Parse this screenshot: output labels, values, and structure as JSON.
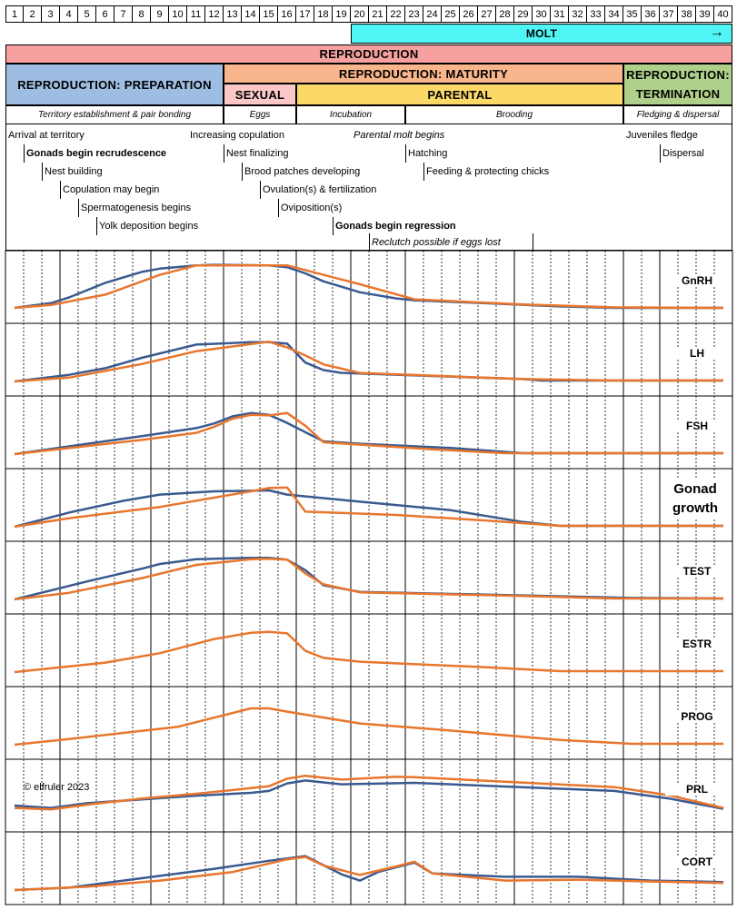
{
  "days": [
    "1",
    "2",
    "3",
    "4",
    "5",
    "6",
    "7",
    "8",
    "9",
    "10",
    "11",
    "12",
    "13",
    "14",
    "15",
    "16",
    "17",
    "18",
    "19",
    "20",
    "21",
    "22",
    "23",
    "24",
    "25",
    "26",
    "27",
    "28",
    "29",
    "30",
    "31",
    "32",
    "33",
    "34",
    "35",
    "36",
    "37",
    "38",
    "39",
    "40"
  ],
  "molt": {
    "label": "MOLT",
    "arrow": "→",
    "color": "#4ff4f4"
  },
  "reproduction": {
    "label": "REPRODUCTION",
    "color": "#f6a19f"
  },
  "phases": {
    "preparation": {
      "label": "REPRODUCTION: PREPARATION",
      "color": "#9dbde3"
    },
    "maturity": {
      "label": "REPRODUCTION: MATURITY",
      "color": "#f9b58b"
    },
    "sexual": {
      "label": "SEXUAL",
      "color": "#fbc7c7"
    },
    "parental": {
      "label": "PARENTAL",
      "color": "#fcd868"
    },
    "termination_line1": "REPRODUCTION:",
    "termination_line2": "TERMINATION",
    "termination_color": "#aed08a"
  },
  "subphases": {
    "territory": "Territory establishment & pair bonding",
    "eggs": "Eggs",
    "incubation": "Incubation",
    "brooding": "Brooding",
    "fledging": "Fledging & dispersal"
  },
  "events": [
    {
      "text": "Arrival at territory",
      "day": 1,
      "row": 0,
      "style": ""
    },
    {
      "text": "Gonads begin recrudescence",
      "day": 2,
      "row": 1,
      "style": "b"
    },
    {
      "text": "Nest building",
      "day": 3,
      "row": 2,
      "style": ""
    },
    {
      "text": "Copulation may begin",
      "day": 4,
      "row": 3,
      "style": ""
    },
    {
      "text": "Spermatogenesis begins",
      "day": 5,
      "row": 4,
      "style": ""
    },
    {
      "text": "Yolk deposition begins",
      "day": 6,
      "row": 5,
      "style": ""
    },
    {
      "text": "Increasing copulation",
      "day": 11,
      "row": 0,
      "style": ""
    },
    {
      "text": "Nest finalizing",
      "day": 13,
      "row": 1,
      "style": ""
    },
    {
      "text": "Brood patches developing",
      "day": 14,
      "row": 2,
      "style": ""
    },
    {
      "text": "Ovulation(s) & fertilization",
      "day": 15,
      "row": 3,
      "style": ""
    },
    {
      "text": "Oviposition(s)",
      "day": 16,
      "row": 4,
      "style": ""
    },
    {
      "text": "Parental molt begins",
      "day": 20,
      "row": 0,
      "style": "i"
    },
    {
      "text": "Gonads begin regression",
      "day": 19,
      "row": 5,
      "style": "b"
    },
    {
      "text": "Reclutch possible if eggs lost",
      "day": 21,
      "row": 6,
      "style": "i"
    },
    {
      "text": "Hatching",
      "day": 23,
      "row": 1,
      "style": ""
    },
    {
      "text": "Feeding & protecting chicks",
      "day": 24,
      "row": 2,
      "style": ""
    },
    {
      "text": "Juveniles fledge",
      "day": 35,
      "row": 0,
      "style": ""
    },
    {
      "text": "Dispersal",
      "day": 37,
      "row": 1,
      "style": ""
    }
  ],
  "copyright": "© elfruler 2023",
  "colors": {
    "male": "#3a5a8f",
    "female": "#e8762d"
  },
  "chart_data": {
    "type": "line",
    "x": [
      1,
      2,
      3,
      4,
      5,
      6,
      7,
      8,
      9,
      10,
      11,
      12,
      13,
      14,
      15,
      16,
      17,
      18,
      19,
      20,
      21,
      22,
      23,
      24,
      25,
      26,
      27,
      28,
      29,
      30,
      31,
      32,
      33,
      34,
      35,
      36,
      37,
      38,
      39,
      40
    ],
    "hormones": [
      {
        "label": "GnRH",
        "male": [
          [
            1,
            0.02
          ],
          [
            3,
            0.12
          ],
          [
            4,
            0.24
          ],
          [
            6,
            0.55
          ],
          [
            8,
            0.78
          ],
          [
            9,
            0.85
          ],
          [
            11,
            0.92
          ],
          [
            12,
            0.93
          ],
          [
            15,
            0.92
          ],
          [
            16,
            0.88
          ],
          [
            17,
            0.75
          ],
          [
            18,
            0.58
          ],
          [
            20,
            0.35
          ],
          [
            22,
            0.22
          ],
          [
            23,
            0.18
          ],
          [
            28,
            0.1
          ],
          [
            31,
            0.05
          ],
          [
            34,
            0.02
          ],
          [
            40,
            0.02
          ]
        ],
        "female": [
          [
            1,
            0.02
          ],
          [
            3,
            0.08
          ],
          [
            6,
            0.3
          ],
          [
            9,
            0.72
          ],
          [
            11,
            0.92
          ],
          [
            16,
            0.92
          ],
          [
            20,
            0.52
          ],
          [
            23,
            0.2
          ],
          [
            29,
            0.09
          ],
          [
            34,
            0.03
          ],
          [
            40,
            0.02
          ]
        ]
      },
      {
        "label": "LH",
        "male": [
          [
            1,
            0
          ],
          [
            4,
            0.14
          ],
          [
            6,
            0.28
          ],
          [
            8,
            0.5
          ],
          [
            11,
            0.78
          ],
          [
            14,
            0.83
          ],
          [
            15,
            0.83
          ],
          [
            16,
            0.8
          ],
          [
            17,
            0.4
          ],
          [
            18,
            0.24
          ],
          [
            19,
            0.18
          ],
          [
            29,
            0.05
          ],
          [
            30,
            0.02
          ],
          [
            40,
            0.02
          ]
        ],
        "female": [
          [
            1,
            0
          ],
          [
            4,
            0.08
          ],
          [
            8,
            0.37
          ],
          [
            11,
            0.64
          ],
          [
            15,
            0.84
          ],
          [
            16,
            0.72
          ],
          [
            17,
            0.55
          ],
          [
            18,
            0.36
          ],
          [
            20,
            0.18
          ],
          [
            29,
            0.05
          ],
          [
            34,
            0.02
          ],
          [
            40,
            0.02
          ]
        ]
      },
      {
        "label": "FSH",
        "male": [
          [
            1,
            0
          ],
          [
            8,
            0.38
          ],
          [
            11,
            0.55
          ],
          [
            12,
            0.65
          ],
          [
            13,
            0.8
          ],
          [
            14,
            0.87
          ],
          [
            15,
            0.83
          ],
          [
            16,
            0.66
          ],
          [
            18,
            0.27
          ],
          [
            20,
            0.22
          ],
          [
            25,
            0.13
          ],
          [
            29,
            0.02
          ],
          [
            40,
            0.02
          ]
        ],
        "female": [
          [
            1,
            0
          ],
          [
            8,
            0.3
          ],
          [
            11,
            0.45
          ],
          [
            12,
            0.58
          ],
          [
            13,
            0.75
          ],
          [
            14,
            0.83
          ],
          [
            15,
            0.82
          ],
          [
            16,
            0.87
          ],
          [
            17,
            0.6
          ],
          [
            18,
            0.25
          ],
          [
            24,
            0.1
          ],
          [
            28,
            0.02
          ],
          [
            40,
            0.02
          ]
        ]
      },
      {
        "label": "Gonad growth",
        "male": [
          [
            1,
            0
          ],
          [
            4,
            0.3
          ],
          [
            7,
            0.55
          ],
          [
            9,
            0.68
          ],
          [
            12,
            0.75
          ],
          [
            15,
            0.77
          ],
          [
            16,
            0.68
          ],
          [
            20,
            0.53
          ],
          [
            25,
            0.35
          ],
          [
            29,
            0.1
          ],
          [
            31,
            0.02
          ],
          [
            40,
            0.02
          ]
        ],
        "female": [
          [
            1,
            0
          ],
          [
            4,
            0.18
          ],
          [
            9,
            0.42
          ],
          [
            14,
            0.75
          ],
          [
            15,
            0.82
          ],
          [
            16,
            0.83
          ],
          [
            17,
            0.32
          ],
          [
            22,
            0.25
          ],
          [
            27,
            0.13
          ],
          [
            31,
            0.02
          ],
          [
            40,
            0.02
          ]
        ]
      },
      {
        "label": "TEST",
        "male": [
          [
            1,
            0
          ],
          [
            5,
            0.38
          ],
          [
            8,
            0.65
          ],
          [
            9,
            0.75
          ],
          [
            11,
            0.85
          ],
          [
            14,
            0.88
          ],
          [
            15,
            0.88
          ],
          [
            16,
            0.84
          ],
          [
            17,
            0.62
          ],
          [
            18,
            0.3
          ],
          [
            20,
            0.16
          ],
          [
            27,
            0.1
          ],
          [
            35,
            0.03
          ],
          [
            40,
            0.02
          ]
        ],
        "female": [
          [
            1,
            0
          ],
          [
            4,
            0.14
          ],
          [
            8,
            0.45
          ],
          [
            11,
            0.73
          ],
          [
            14,
            0.85
          ],
          [
            15,
            0.86
          ],
          [
            16,
            0.84
          ],
          [
            17,
            0.55
          ],
          [
            18,
            0.32
          ],
          [
            20,
            0.15
          ],
          [
            28,
            0.08
          ],
          [
            34,
            0.02
          ],
          [
            40,
            0.02
          ]
        ]
      },
      {
        "label": "ESTR",
        "female": [
          [
            1,
            0
          ],
          [
            6,
            0.2
          ],
          [
            9,
            0.4
          ],
          [
            12,
            0.7
          ],
          [
            14,
            0.83
          ],
          [
            15,
            0.85
          ],
          [
            16,
            0.82
          ],
          [
            17,
            0.45
          ],
          [
            18,
            0.3
          ],
          [
            20,
            0.22
          ],
          [
            27,
            0.1
          ],
          [
            31,
            0.02
          ],
          [
            40,
            0.02
          ]
        ]
      },
      {
        "label": "PROG",
        "female": [
          [
            1,
            0
          ],
          [
            4,
            0.12
          ],
          [
            10,
            0.38
          ],
          [
            14,
            0.77
          ],
          [
            15,
            0.77
          ],
          [
            16,
            0.7
          ],
          [
            20,
            0.45
          ],
          [
            25,
            0.3
          ],
          [
            31,
            0.1
          ],
          [
            35,
            0.02
          ],
          [
            40,
            0.02
          ]
        ]
      },
      {
        "label": "PRL",
        "male": [
          [
            1,
            0.25
          ],
          [
            3,
            0.2
          ],
          [
            5,
            0.3
          ],
          [
            8,
            0.38
          ],
          [
            11,
            0.46
          ],
          [
            14,
            0.52
          ],
          [
            15,
            0.56
          ],
          [
            16,
            0.72
          ],
          [
            17,
            0.78
          ],
          [
            19,
            0.7
          ],
          [
            23,
            0.73
          ],
          [
            34,
            0.56
          ],
          [
            37,
            0.4
          ],
          [
            40,
            0.18
          ]
        ],
        "female": [
          [
            1,
            0.2
          ],
          [
            3,
            0.17
          ],
          [
            5,
            0.27
          ],
          [
            8,
            0.4
          ],
          [
            11,
            0.5
          ],
          [
            14,
            0.62
          ],
          [
            15,
            0.66
          ],
          [
            16,
            0.82
          ],
          [
            17,
            0.88
          ],
          [
            19,
            0.8
          ],
          [
            22,
            0.86
          ],
          [
            23,
            0.85
          ],
          [
            34,
            0.64
          ],
          [
            37,
            0.47
          ],
          [
            40,
            0.2
          ]
        ]
      },
      {
        "label": "CORT",
        "male": [
          [
            1,
            0
          ],
          [
            4,
            0.05
          ],
          [
            8,
            0.25
          ],
          [
            12,
            0.45
          ],
          [
            15,
            0.62
          ],
          [
            17,
            0.72
          ],
          [
            19,
            0.33
          ],
          [
            20,
            0.2
          ],
          [
            21,
            0.38
          ],
          [
            23,
            0.58
          ],
          [
            24,
            0.35
          ],
          [
            28,
            0.28
          ],
          [
            32,
            0.28
          ],
          [
            36,
            0.2
          ],
          [
            40,
            0.17
          ]
        ],
        "female": [
          [
            1,
            0
          ],
          [
            5,
            0.07
          ],
          [
            9,
            0.2
          ],
          [
            13,
            0.38
          ],
          [
            16,
            0.65
          ],
          [
            17,
            0.7
          ],
          [
            18,
            0.52
          ],
          [
            20,
            0.32
          ],
          [
            22,
            0.5
          ],
          [
            23,
            0.6
          ],
          [
            24,
            0.35
          ],
          [
            28,
            0.2
          ],
          [
            32,
            0.22
          ],
          [
            36,
            0.18
          ],
          [
            40,
            0.15
          ]
        ]
      }
    ]
  }
}
